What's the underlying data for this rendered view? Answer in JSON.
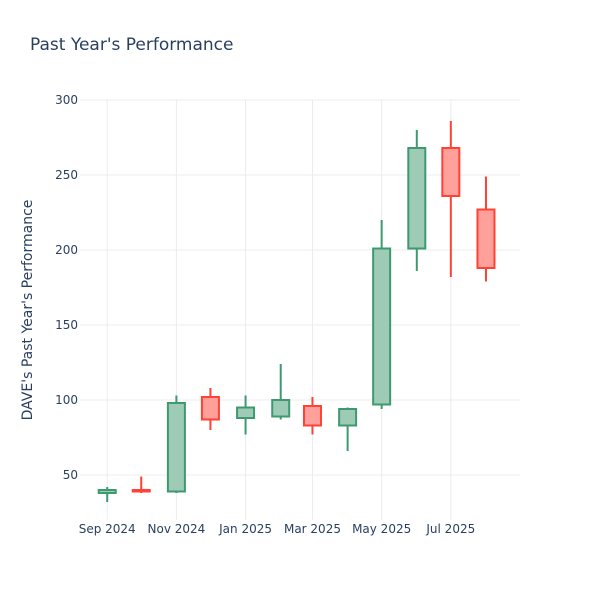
{
  "chart_data": {
    "type": "candlestick",
    "title": "Past Year's Performance",
    "ylabel": "DAVE's Past Year's Performance",
    "xlabel": "",
    "ylim": [
      20,
      300
    ],
    "yticks": [
      50,
      100,
      150,
      200,
      250,
      300
    ],
    "xticks": [
      {
        "date": "2024-09-01",
        "label": "Sep 2024"
      },
      {
        "date": "2024-11-01",
        "label": "Nov 2024"
      },
      {
        "date": "2025-01-01",
        "label": "Jan 2025"
      },
      {
        "date": "2025-03-01",
        "label": "Mar 2025"
      },
      {
        "date": "2025-05-01",
        "label": "May 2025"
      },
      {
        "date": "2025-07-01",
        "label": "Jul 2025"
      }
    ],
    "xrange": [
      "2024-08-08",
      "2025-08-31"
    ],
    "grid": true,
    "colors": {
      "increasing_line": "#3d9970",
      "increasing_fill": "#9ecbb6",
      "decreasing_line": "#ff4136",
      "decreasing_fill": "#ffa09b"
    },
    "candles": [
      {
        "date": "2024-09-01",
        "open": 38,
        "high": 42,
        "low": 32,
        "close": 40
      },
      {
        "date": "2024-10-01",
        "open": 40,
        "high": 49,
        "low": 38,
        "close": 39
      },
      {
        "date": "2024-11-01",
        "open": 39,
        "high": 103,
        "low": 38,
        "close": 98
      },
      {
        "date": "2024-12-01",
        "open": 102,
        "high": 108,
        "low": 80,
        "close": 87
      },
      {
        "date": "2025-01-01",
        "open": 88,
        "high": 103,
        "low": 77,
        "close": 95
      },
      {
        "date": "2025-02-01",
        "open": 89,
        "high": 124,
        "low": 87,
        "close": 100
      },
      {
        "date": "2025-03-01",
        "open": 96,
        "high": 102,
        "low": 77,
        "close": 83
      },
      {
        "date": "2025-04-01",
        "open": 83,
        "high": 95,
        "low": 66,
        "close": 94
      },
      {
        "date": "2025-05-01",
        "open": 97,
        "high": 220,
        "low": 94,
        "close": 201
      },
      {
        "date": "2025-06-01",
        "open": 201,
        "high": 280,
        "low": 186,
        "close": 268
      },
      {
        "date": "2025-07-01",
        "open": 268,
        "high": 286,
        "low": 182,
        "close": 236
      },
      {
        "date": "2025-08-01",
        "open": 227,
        "high": 249,
        "low": 179,
        "close": 188
      }
    ]
  }
}
